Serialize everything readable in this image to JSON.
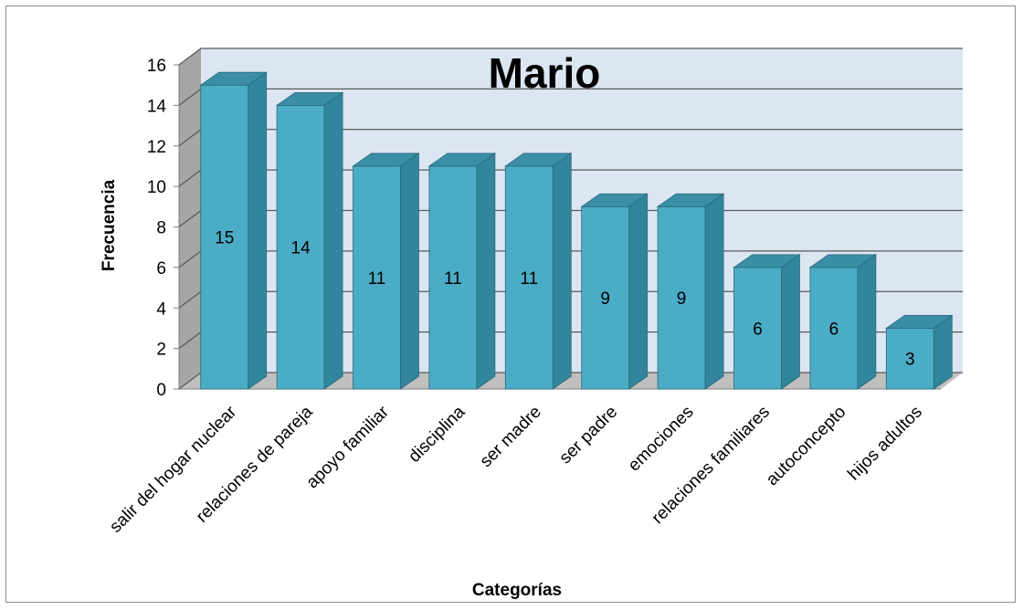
{
  "chart_data": {
    "type": "bar",
    "title": "Mario",
    "xlabel": "Categorías",
    "ylabel": "Frecuencia",
    "ylim": [
      0,
      16
    ],
    "yticks": [
      0,
      2,
      4,
      6,
      8,
      10,
      12,
      14,
      16
    ],
    "grid": true,
    "legend": "none",
    "style": "3d-column",
    "categories": [
      "salir del hogar nuclear",
      "relaciones de pareja",
      "apoyo familiar",
      "disciplina",
      "ser madre",
      "ser padre",
      "emociones",
      "relaciones familiares",
      "autoconcepto",
      "hijos adultos"
    ],
    "values": [
      15,
      14,
      11,
      11,
      11,
      9,
      9,
      6,
      6,
      3
    ],
    "colors": {
      "bar_front": "#4BACC6",
      "bar_side": "#31859C",
      "bar_top": "#3A8FA6",
      "wall": "#DCE6F2",
      "side_wall": "#A6A6A6",
      "floor": "#BFBFBF",
      "grid": "#595959"
    }
  }
}
